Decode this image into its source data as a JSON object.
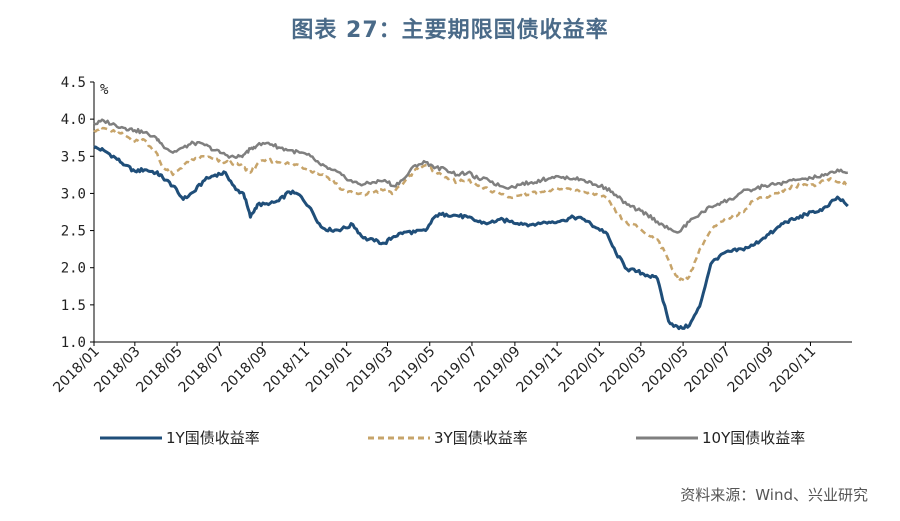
{
  "page_title": "图表 27：主要期限国债收益率",
  "source": "资料来源：Wind、兴业研究",
  "chart_data": {
    "type": "line",
    "title": "图表 27：主要期限国债收益率",
    "ylabel": "%",
    "ylim": [
      1.0,
      4.5
    ],
    "yticks": [
      "1.0",
      "1.5",
      "2.0",
      "2.5",
      "3.0",
      "3.5",
      "4.0",
      "4.5"
    ],
    "xlim": [
      "2018/01",
      "2020/12"
    ],
    "xticks": [
      "2018/01",
      "2018/03",
      "2018/05",
      "2018/07",
      "2018/09",
      "2018/11",
      "2019/01",
      "2019/03",
      "2019/05",
      "2019/07",
      "2019/09",
      "2019/11",
      "2020/01",
      "2020/03",
      "2020/05",
      "2020/07",
      "2020/09",
      "2020/11"
    ],
    "grid": false,
    "legend_position": "bottom",
    "series": [
      {
        "name": "1Y国债收益率",
        "color": "#1f4e79",
        "style": "solid",
        "x": [
          "2018/01/01",
          "2018/01/15",
          "2018/02/01",
          "2018/02/15",
          "2018/03/01",
          "2018/03/15",
          "2018/04/01",
          "2018/04/10",
          "2018/04/25",
          "2018/05/10",
          "2018/05/25",
          "2018/06/10",
          "2018/06/25",
          "2018/07/10",
          "2018/07/25",
          "2018/08/05",
          "2018/08/15",
          "2018/08/25",
          "2018/09/10",
          "2018/09/25",
          "2018/10/10",
          "2018/10/25",
          "2018/11/10",
          "2018/11/25",
          "2018/12/10",
          "2018/12/25",
          "2019/01/10",
          "2019/01/25",
          "2019/02/10",
          "2019/02/25",
          "2019/03/10",
          "2019/03/25",
          "2019/04/10",
          "2019/04/25",
          "2019/05/10",
          "2019/05/25",
          "2019/06/10",
          "2019/06/25",
          "2019/07/10",
          "2019/07/25",
          "2019/08/10",
          "2019/08/25",
          "2019/09/10",
          "2019/09/25",
          "2019/10/10",
          "2019/10/25",
          "2019/11/10",
          "2019/11/25",
          "2019/12/10",
          "2019/12/25",
          "2020/01/10",
          "2020/01/25",
          "2020/02/10",
          "2020/02/25",
          "2020/03/10",
          "2020/03/25",
          "2020/04/10",
          "2020/04/25",
          "2020/05/10",
          "2020/05/25",
          "2020/06/10",
          "2020/06/25",
          "2020/07/10",
          "2020/07/25",
          "2020/08/10",
          "2020/08/25",
          "2020/09/10",
          "2020/09/25",
          "2020/10/10",
          "2020/10/25",
          "2020/11/10",
          "2020/11/25",
          "2020/12/10",
          "2020/12/25"
        ],
        "values": [
          3.62,
          3.58,
          3.48,
          3.38,
          3.3,
          3.32,
          3.28,
          3.22,
          3.1,
          2.92,
          3.02,
          3.18,
          3.25,
          3.28,
          3.05,
          3.0,
          2.68,
          2.85,
          2.85,
          2.9,
          3.02,
          2.98,
          2.8,
          2.55,
          2.5,
          2.52,
          2.58,
          2.4,
          2.36,
          2.33,
          2.42,
          2.48,
          2.48,
          2.5,
          2.7,
          2.72,
          2.7,
          2.68,
          2.62,
          2.6,
          2.65,
          2.62,
          2.6,
          2.58,
          2.6,
          2.62,
          2.64,
          2.68,
          2.65,
          2.55,
          2.48,
          2.2,
          1.98,
          1.95,
          1.9,
          1.85,
          1.28,
          1.18,
          1.22,
          1.48,
          2.05,
          2.18,
          2.22,
          2.25,
          2.3,
          2.4,
          2.5,
          2.62,
          2.65,
          2.72,
          2.75,
          2.82,
          2.95,
          2.83
        ]
      },
      {
        "name": "3Y国债收益率",
        "color": "#c7a46a",
        "style": "dashed",
        "x": [
          "2018/01/01",
          "2018/01/15",
          "2018/02/01",
          "2018/02/15",
          "2018/03/01",
          "2018/03/15",
          "2018/04/01",
          "2018/04/10",
          "2018/04/25",
          "2018/05/10",
          "2018/05/25",
          "2018/06/10",
          "2018/06/25",
          "2018/07/10",
          "2018/07/25",
          "2018/08/05",
          "2018/08/15",
          "2018/08/25",
          "2018/09/10",
          "2018/09/25",
          "2018/10/10",
          "2018/10/25",
          "2018/11/10",
          "2018/11/25",
          "2018/12/10",
          "2018/12/25",
          "2019/01/10",
          "2019/01/25",
          "2019/02/10",
          "2019/02/25",
          "2019/03/10",
          "2019/03/25",
          "2019/04/10",
          "2019/04/25",
          "2019/05/10",
          "2019/05/25",
          "2019/06/10",
          "2019/06/25",
          "2019/07/10",
          "2019/07/25",
          "2019/08/10",
          "2019/08/25",
          "2019/09/10",
          "2019/09/25",
          "2019/10/10",
          "2019/10/25",
          "2019/11/10",
          "2019/11/25",
          "2019/12/10",
          "2019/12/25",
          "2020/01/10",
          "2020/01/25",
          "2020/02/10",
          "2020/02/25",
          "2020/03/10",
          "2020/03/25",
          "2020/04/10",
          "2020/04/25",
          "2020/05/10",
          "2020/05/25",
          "2020/06/10",
          "2020/06/25",
          "2020/07/10",
          "2020/07/25",
          "2020/08/10",
          "2020/08/25",
          "2020/09/10",
          "2020/09/25",
          "2020/10/10",
          "2020/10/25",
          "2020/11/10",
          "2020/11/25",
          "2020/12/10",
          "2020/12/25"
        ],
        "values": [
          3.85,
          3.88,
          3.82,
          3.78,
          3.7,
          3.72,
          3.55,
          3.35,
          3.25,
          3.38,
          3.45,
          3.5,
          3.45,
          3.42,
          3.4,
          3.35,
          3.28,
          3.4,
          3.45,
          3.42,
          3.4,
          3.38,
          3.3,
          3.25,
          3.2,
          3.05,
          3.0,
          2.98,
          3.02,
          3.05,
          3.0,
          3.15,
          3.32,
          3.38,
          3.28,
          3.22,
          3.15,
          3.18,
          3.1,
          3.05,
          3.0,
          2.95,
          2.98,
          3.0,
          3.02,
          3.05,
          3.05,
          3.05,
          3.02,
          2.98,
          2.95,
          2.75,
          2.6,
          2.55,
          2.45,
          2.38,
          2.1,
          1.82,
          1.88,
          2.25,
          2.5,
          2.62,
          2.68,
          2.75,
          2.9,
          2.95,
          3.0,
          3.05,
          3.1,
          3.12,
          3.12,
          3.2,
          3.15,
          3.12
        ]
      },
      {
        "name": "10Y国债收益率",
        "color": "#7f7f7f",
        "style": "solid",
        "x": [
          "2018/01/01",
          "2018/01/15",
          "2018/02/01",
          "2018/02/15",
          "2018/03/01",
          "2018/03/15",
          "2018/04/01",
          "2018/04/10",
          "2018/04/25",
          "2018/05/10",
          "2018/05/25",
          "2018/06/10",
          "2018/06/25",
          "2018/07/10",
          "2018/07/25",
          "2018/08/05",
          "2018/08/15",
          "2018/08/25",
          "2018/09/10",
          "2018/09/25",
          "2018/10/10",
          "2018/10/25",
          "2018/11/10",
          "2018/11/25",
          "2018/12/10",
          "2018/12/25",
          "2019/01/10",
          "2019/01/25",
          "2019/02/10",
          "2019/02/25",
          "2019/03/10",
          "2019/03/25",
          "2019/04/10",
          "2019/04/25",
          "2019/05/10",
          "2019/05/25",
          "2019/06/10",
          "2019/06/25",
          "2019/07/10",
          "2019/07/25",
          "2019/08/10",
          "2019/08/25",
          "2019/09/10",
          "2019/09/25",
          "2019/10/10",
          "2019/10/25",
          "2019/11/10",
          "2019/11/25",
          "2019/12/10",
          "2019/12/25",
          "2020/01/10",
          "2020/01/25",
          "2020/02/10",
          "2020/02/25",
          "2020/03/10",
          "2020/03/25",
          "2020/04/10",
          "2020/04/25",
          "2020/05/10",
          "2020/05/25",
          "2020/06/10",
          "2020/06/25",
          "2020/07/10",
          "2020/07/25",
          "2020/08/10",
          "2020/08/25",
          "2020/09/10",
          "2020/09/25",
          "2020/10/10",
          "2020/10/25",
          "2020/11/10",
          "2020/11/25",
          "2020/12/10",
          "2020/12/25"
        ],
        "values": [
          3.93,
          3.98,
          3.92,
          3.88,
          3.85,
          3.82,
          3.75,
          3.65,
          3.55,
          3.62,
          3.68,
          3.65,
          3.58,
          3.52,
          3.48,
          3.52,
          3.6,
          3.65,
          3.68,
          3.62,
          3.58,
          3.55,
          3.5,
          3.38,
          3.32,
          3.25,
          3.15,
          3.12,
          3.15,
          3.18,
          3.1,
          3.2,
          3.38,
          3.42,
          3.35,
          3.32,
          3.25,
          3.28,
          3.2,
          3.18,
          3.1,
          3.08,
          3.12,
          3.15,
          3.18,
          3.22,
          3.22,
          3.2,
          3.18,
          3.12,
          3.08,
          2.98,
          2.85,
          2.78,
          2.72,
          2.62,
          2.52,
          2.48,
          2.62,
          2.72,
          2.82,
          2.88,
          2.92,
          3.02,
          3.05,
          3.1,
          3.12,
          3.15,
          3.18,
          3.2,
          3.22,
          3.25,
          3.32,
          3.28
        ]
      }
    ]
  }
}
